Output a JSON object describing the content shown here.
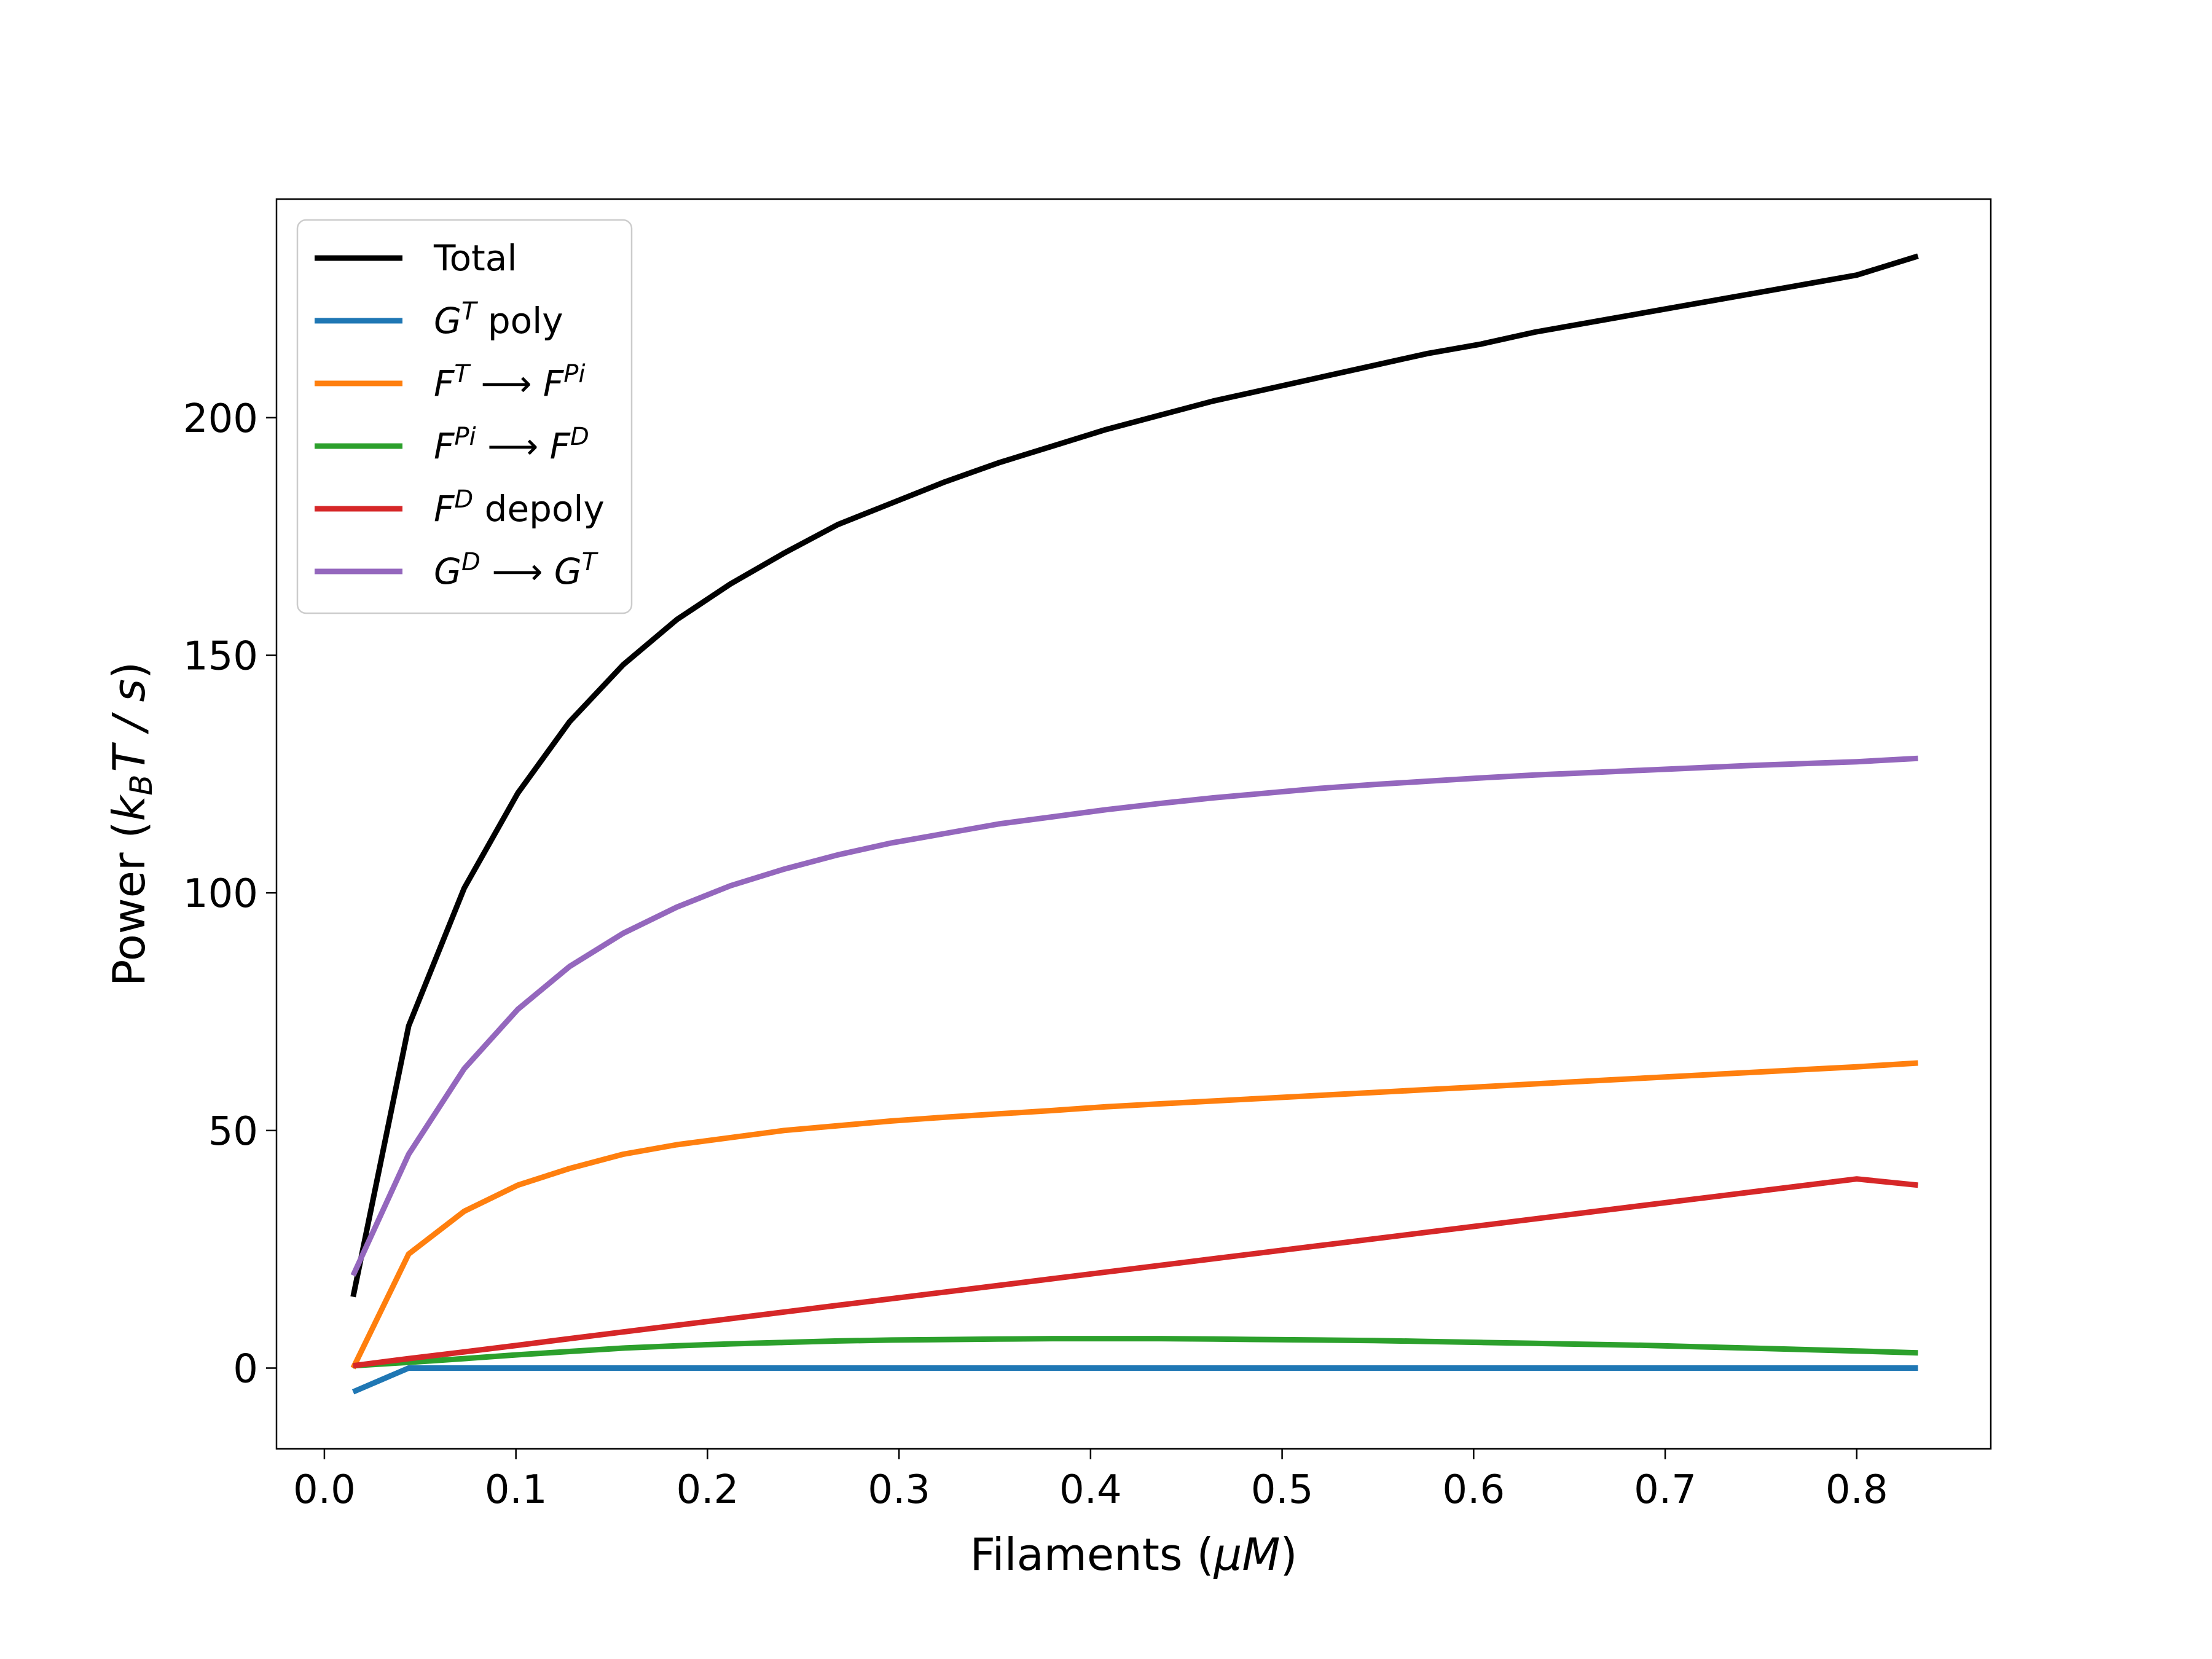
{
  "chart_data": {
    "type": "line",
    "xlabel": {
      "text": "Filaments (",
      "var": "μM",
      "end": ")"
    },
    "ylabel": {
      "text": "Power (",
      "var": "k",
      "sub": "B",
      "var2": "T / s",
      "end": ")"
    },
    "xlim": [
      -0.025,
      0.87
    ],
    "ylim": [
      -17,
      246
    ],
    "xticks": [
      0.0,
      0.1,
      0.2,
      0.3,
      0.4,
      0.5,
      0.6,
      0.7,
      0.8
    ],
    "xtick_labels": [
      "0.0",
      "0.1",
      "0.2",
      "0.3",
      "0.4",
      "0.5",
      "0.6",
      "0.7",
      "0.8"
    ],
    "yticks": [
      0,
      50,
      100,
      150,
      200
    ],
    "ytick_labels": [
      "0",
      "50",
      "100",
      "150",
      "200"
    ],
    "legend_position": "top-left",
    "x": [
      0.015,
      0.044,
      0.073,
      0.101,
      0.128,
      0.156,
      0.184,
      0.212,
      0.24,
      0.268,
      0.296,
      0.324,
      0.352,
      0.38,
      0.408,
      0.436,
      0.464,
      0.492,
      0.52,
      0.548,
      0.576,
      0.604,
      0.632,
      0.66,
      0.688,
      0.716,
      0.744,
      0.772,
      0.8,
      0.832
    ],
    "series": [
      {
        "id": "total",
        "color": "#000000",
        "label_parts": [
          {
            "t": "Total"
          }
        ],
        "values": [
          15,
          72,
          101,
          121,
          136,
          148,
          157.5,
          165,
          171.5,
          177.5,
          182,
          186.5,
          190.5,
          194,
          197.5,
          200.5,
          203.5,
          206,
          208.5,
          211,
          213.5,
          215.5,
          218,
          220,
          222,
          224,
          226,
          228,
          230,
          234
        ]
      },
      {
        "id": "gt-poly",
        "color": "#1f77b4",
        "label_parts": [
          {
            "t": "G",
            "i": true
          },
          {
            "t": "T",
            "i": true,
            "sup": true
          },
          {
            "t": " poly"
          }
        ],
        "values": [
          -5,
          0,
          0,
          0,
          0,
          0,
          0,
          0,
          0,
          0,
          0,
          0,
          0,
          0,
          0,
          0,
          0,
          0,
          0,
          0,
          0,
          0,
          0,
          0,
          0,
          0,
          0,
          0,
          0,
          0
        ]
      },
      {
        "id": "ft-fpi",
        "color": "#ff7f0e",
        "label_parts": [
          {
            "t": "F",
            "i": true
          },
          {
            "t": "T",
            "i": true,
            "sup": true
          },
          {
            "t": " ⟶ "
          },
          {
            "t": "F",
            "i": true
          },
          {
            "t": "Pi",
            "i": true,
            "sup": true
          }
        ],
        "values": [
          0,
          24,
          33,
          38.5,
          42,
          45,
          47,
          48.5,
          50,
          51,
          52,
          52.8,
          53.5,
          54.2,
          55,
          55.6,
          56.2,
          56.8,
          57.4,
          58,
          58.6,
          59.2,
          59.8,
          60.4,
          61,
          61.6,
          62.2,
          62.8,
          63.4,
          64.2
        ]
      },
      {
        "id": "fpi-fd",
        "color": "#2ca02c",
        "label_parts": [
          {
            "t": "F",
            "i": true
          },
          {
            "t": "Pi",
            "i": true,
            "sup": true
          },
          {
            "t": " ⟶ "
          },
          {
            "t": "F",
            "i": true
          },
          {
            "t": "D",
            "i": true,
            "sup": true
          }
        ],
        "values": [
          0.5,
          1.2,
          2,
          2.8,
          3.5,
          4.2,
          4.7,
          5.1,
          5.4,
          5.7,
          5.9,
          6.0,
          6.1,
          6.2,
          6.2,
          6.2,
          6.1,
          6.0,
          5.9,
          5.8,
          5.6,
          5.4,
          5.2,
          5.0,
          4.8,
          4.5,
          4.2,
          3.9,
          3.6,
          3.2
        ]
      },
      {
        "id": "fd-depoly",
        "color": "#d62728",
        "label_parts": [
          {
            "t": "F",
            "i": true
          },
          {
            "t": "D",
            "i": true,
            "sup": true
          },
          {
            "t": " depoly"
          }
        ],
        "values": [
          0.5,
          2,
          3.4,
          4.8,
          6.2,
          7.6,
          9,
          10.4,
          11.8,
          13.2,
          14.6,
          16,
          17.4,
          18.8,
          20.2,
          21.6,
          23,
          24.4,
          25.8,
          27.2,
          28.6,
          30,
          31.4,
          32.8,
          34.2,
          35.6,
          37,
          38.4,
          39.8,
          38.5
        ]
      },
      {
        "id": "gd-gt",
        "color": "#9467bd",
        "label_parts": [
          {
            "t": "G",
            "i": true
          },
          {
            "t": "D",
            "i": true,
            "sup": true
          },
          {
            "t": " ⟶ "
          },
          {
            "t": "G",
            "i": true
          },
          {
            "t": "T",
            "i": true,
            "sup": true
          }
        ],
        "values": [
          19.5,
          45,
          63,
          75.5,
          84.5,
          91.5,
          97,
          101.5,
          105,
          108,
          110.5,
          112.5,
          114.5,
          116,
          117.5,
          118.8,
          120,
          121,
          122,
          122.8,
          123.5,
          124.2,
          124.8,
          125.3,
          125.8,
          126.3,
          126.8,
          127.2,
          127.6,
          128.3
        ]
      }
    ]
  }
}
